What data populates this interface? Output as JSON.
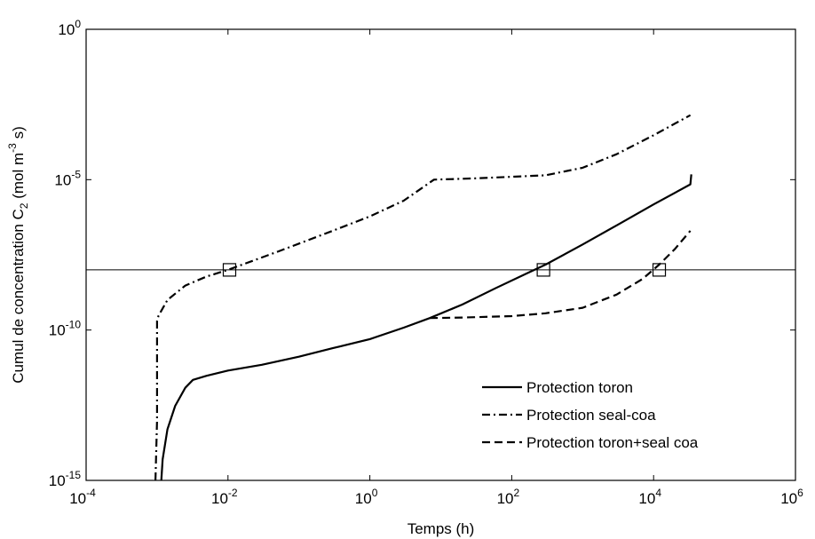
{
  "chart_data": {
    "type": "line",
    "title": "",
    "xlabel": "Temps (h)",
    "ylabel": "Cumul de concentration C_2 (mol m^-3 s)",
    "ylabel_parts": {
      "main": "Cumul de concentration C",
      "sub": "2",
      "unit_open": " (mol m",
      "unit_exp": "-3",
      "unit_close": " s)"
    },
    "x_scale": "log",
    "y_scale": "log",
    "xlim": [
      0.0001,
      1000000
    ],
    "ylim": [
      1e-15,
      1
    ],
    "x_ticks": [
      {
        "value": 0.0001,
        "base": "10",
        "exp": "-4"
      },
      {
        "value": 0.01,
        "base": "10",
        "exp": "-2"
      },
      {
        "value": 1,
        "base": "10",
        "exp": "0"
      },
      {
        "value": 100,
        "base": "10",
        "exp": "2"
      },
      {
        "value": 10000,
        "base": "10",
        "exp": "4"
      },
      {
        "value": 1000000,
        "base": "10",
        "exp": "6"
      }
    ],
    "y_ticks": [
      {
        "value": 1e-15,
        "base": "10",
        "exp": "-15"
      },
      {
        "value": 1e-10,
        "base": "10",
        "exp": "-10"
      },
      {
        "value": 1e-05,
        "base": "10",
        "exp": "-5"
      },
      {
        "value": 1,
        "base": "10",
        "exp": "0"
      }
    ],
    "grid": false,
    "legend_position": "bottom-right",
    "threshold": {
      "y": 1e-08
    },
    "series": [
      {
        "name": "Protection toron",
        "style": "solid",
        "x": [
          0.00115,
          0.0012,
          0.0014,
          0.0018,
          0.0025,
          0.0032,
          0.005,
          0.01,
          0.03,
          0.1,
          0.3,
          1,
          3,
          7,
          20,
          60,
          150,
          300,
          1000,
          3000,
          10000,
          33000,
          34000
        ],
        "y": [
          1e-15,
          5e-15,
          5e-14,
          3e-13,
          1.2e-12,
          2.2e-12,
          3e-12,
          4.5e-12,
          7e-12,
          1.3e-11,
          2.5e-11,
          5e-11,
          1.2e-10,
          2.5e-10,
          7e-10,
          2.5e-09,
          7e-09,
          1.5e-08,
          7e-08,
          3e-07,
          1.5e-06,
          7e-06,
          1.5e-05
        ]
      },
      {
        "name": "Protection seal-coa",
        "style": "dash-dot",
        "x": [
          0.00095,
          0.001,
          0.001,
          0.00105,
          0.0014,
          0.0025,
          0.005,
          0.01,
          0.05,
          0.3,
          1,
          3,
          8,
          30,
          300,
          1000,
          3000,
          10000,
          33000
        ],
        "y": [
          1e-15,
          1e-13,
          2e-10,
          3e-10,
          1e-09,
          3e-09,
          6e-09,
          1e-08,
          4e-08,
          2e-07,
          6e-07,
          2e-06,
          1e-05,
          1.1e-05,
          1.4e-05,
          2.5e-05,
          7e-05,
          0.0003,
          0.0014
        ]
      },
      {
        "name": "Protection toron+seal coa",
        "style": "dashed",
        "x": [
          7,
          20,
          100,
          300,
          1000,
          3000,
          7000,
          12000,
          20000,
          33000
        ],
        "y": [
          2.5e-10,
          2.6e-10,
          2.9e-10,
          3.6e-10,
          5.5e-10,
          1.5e-09,
          5e-09,
          1.5e-08,
          5e-08,
          2e-07
        ]
      }
    ],
    "markers": [
      {
        "x": 0.0105,
        "y": 1e-08
      },
      {
        "x": 280,
        "y": 1e-08
      },
      {
        "x": 12000,
        "y": 1e-08
      }
    ]
  }
}
